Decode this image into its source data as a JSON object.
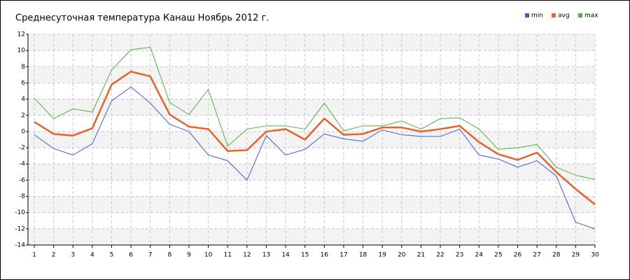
{
  "chart_data": {
    "type": "line",
    "title": "Среднесуточная температура Канаш  Ноябрь 2012 г.",
    "x": [
      1,
      2,
      3,
      4,
      5,
      6,
      7,
      8,
      9,
      10,
      11,
      12,
      13,
      14,
      15,
      16,
      17,
      18,
      19,
      20,
      21,
      22,
      23,
      24,
      25,
      26,
      27,
      28,
      29,
      30
    ],
    "series": [
      {
        "name": "min",
        "color": "#3a5fd9",
        "values": [
          -0.4,
          -2.1,
          -2.9,
          -1.5,
          3.8,
          5.5,
          3.5,
          0.9,
          0.0,
          -2.9,
          -3.6,
          -6.0,
          -0.5,
          -2.9,
          -2.2,
          -0.3,
          -0.9,
          -1.2,
          0.2,
          -0.4,
          -0.6,
          -0.6,
          0.3,
          -2.9,
          -3.4,
          -4.4,
          -3.6,
          -5.5,
          -11.2,
          -12.0
        ]
      },
      {
        "name": "avg",
        "color": "#e8622a",
        "values": [
          1.2,
          -0.3,
          -0.5,
          0.4,
          5.8,
          7.4,
          6.8,
          2.1,
          0.6,
          0.3,
          -2.4,
          -2.3,
          0.0,
          0.3,
          -1.0,
          1.6,
          -0.4,
          -0.3,
          0.5,
          0.5,
          0.0,
          0.3,
          0.7,
          -1.3,
          -2.8,
          -3.5,
          -2.6,
          -5.0,
          -7.1,
          -9.0
        ]
      },
      {
        "name": "max",
        "color": "#4db33d",
        "values": [
          4.1,
          1.6,
          2.8,
          2.4,
          7.6,
          10.1,
          10.4,
          3.6,
          2.1,
          5.2,
          -1.8,
          0.3,
          0.7,
          0.7,
          0.3,
          3.5,
          0.1,
          0.7,
          0.7,
          1.3,
          0.3,
          1.6,
          1.7,
          0.3,
          -2.2,
          -2.0,
          -1.6,
          -4.4,
          -5.4,
          -5.9
        ]
      }
    ],
    "xlim": [
      1,
      30
    ],
    "xticks": [
      1,
      2,
      3,
      4,
      5,
      6,
      7,
      8,
      9,
      10,
      11,
      12,
      13,
      14,
      15,
      16,
      17,
      18,
      19,
      20,
      21,
      22,
      23,
      24,
      25,
      26,
      27,
      28,
      29,
      30
    ],
    "ylim": [
      -14,
      12
    ],
    "yticks": [
      -14,
      -12,
      -10,
      -8,
      -6,
      -4,
      -2,
      0,
      2,
      4,
      6,
      8,
      10,
      12
    ],
    "grid": true,
    "legend": "top-right"
  }
}
